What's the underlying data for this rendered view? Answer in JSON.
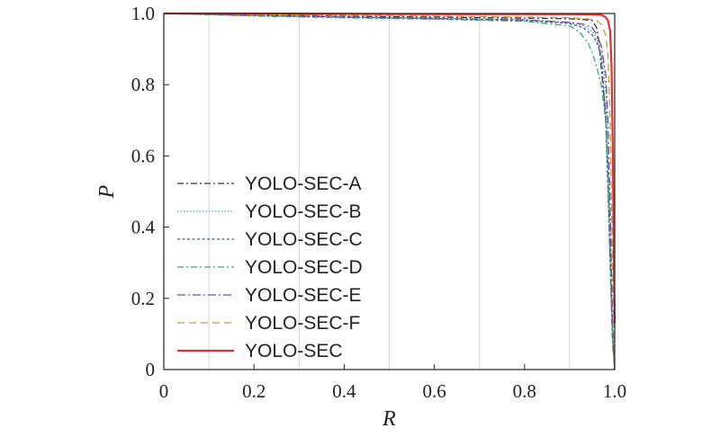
{
  "chart_data": {
    "type": "line",
    "xlabel": "R",
    "ylabel": "P",
    "xlim": [
      0,
      1.0
    ],
    "ylim": [
      0,
      1.0
    ],
    "x_ticks": [
      0,
      0.2,
      0.4,
      0.6,
      0.8,
      1.0
    ],
    "x_tick_labels": [
      "0",
      "0.2",
      "0.4",
      "0.6",
      "0.8",
      "1.0"
    ],
    "y_ticks": [
      0,
      0.2,
      0.4,
      0.6,
      0.8,
      1.0
    ],
    "y_tick_labels": [
      "0",
      "0.2",
      "0.4",
      "0.6",
      "0.8",
      "1.0"
    ],
    "grid": {
      "vertical": [
        0.1,
        0.3,
        0.5,
        0.7,
        0.9
      ],
      "horizontal": false
    },
    "legend_position": "center-left",
    "series": [
      {
        "name": "YOLO-SEC-A",
        "color": "#333333",
        "dash": "dashdot",
        "x": [
          0,
          0.2,
          0.4,
          0.6,
          0.8,
          0.9,
          0.93,
          0.95,
          0.96,
          0.965,
          0.97,
          0.975,
          0.98,
          0.985,
          0.99,
          0.995,
          1.0
        ],
        "y": [
          1.0,
          0.997,
          0.993,
          0.99,
          0.987,
          0.985,
          0.983,
          0.98,
          0.96,
          0.92,
          0.85,
          0.78,
          0.72,
          0.55,
          0.3,
          0.08,
          0.0
        ]
      },
      {
        "name": "YOLO-SEC-B",
        "color": "#4a9fc0",
        "dash": "dotted",
        "x": [
          0,
          0.2,
          0.4,
          0.6,
          0.8,
          0.9,
          0.93,
          0.95,
          0.96,
          0.97,
          0.975,
          0.98,
          0.985,
          0.99,
          0.995,
          1.0
        ],
        "y": [
          1.0,
          0.995,
          0.99,
          0.987,
          0.983,
          0.975,
          0.965,
          0.95,
          0.93,
          0.89,
          0.85,
          0.78,
          0.6,
          0.35,
          0.1,
          0.0
        ]
      },
      {
        "name": "YOLO-SEC-C",
        "color": "#3a5f8a",
        "dash": "dashed-fine",
        "x": [
          0,
          0.2,
          0.4,
          0.6,
          0.8,
          0.9,
          0.93,
          0.95,
          0.96,
          0.97,
          0.975,
          0.98,
          0.985,
          0.99,
          0.995,
          1.0
        ],
        "y": [
          1.0,
          0.994,
          0.99,
          0.985,
          0.98,
          0.972,
          0.96,
          0.94,
          0.92,
          0.88,
          0.8,
          0.7,
          0.5,
          0.3,
          0.1,
          0.0
        ]
      },
      {
        "name": "YOLO-SEC-D",
        "color": "#3aa86a",
        "dash": "dashdot",
        "x": [
          0,
          0.2,
          0.4,
          0.6,
          0.8,
          0.9,
          0.92,
          0.94,
          0.95,
          0.96,
          0.97,
          0.98,
          0.985,
          0.99,
          0.995,
          1.0
        ],
        "y": [
          1.0,
          0.993,
          0.988,
          0.984,
          0.978,
          0.965,
          0.95,
          0.92,
          0.89,
          0.85,
          0.8,
          0.7,
          0.55,
          0.35,
          0.1,
          0.0
        ]
      },
      {
        "name": "YOLO-SEC-E",
        "color": "#6a4aa8",
        "dash": "dashdot-long",
        "x": [
          0,
          0.2,
          0.4,
          0.6,
          0.8,
          0.9,
          0.93,
          0.95,
          0.96,
          0.97,
          0.98,
          0.985,
          0.99,
          0.995,
          1.0
        ],
        "y": [
          1.0,
          0.995,
          0.99,
          0.986,
          0.982,
          0.975,
          0.97,
          0.96,
          0.94,
          0.91,
          0.83,
          0.7,
          0.45,
          0.15,
          0.0
        ]
      },
      {
        "name": "YOLO-SEC-F",
        "color": "#c89a3a",
        "dash": "dashed",
        "x": [
          0,
          0.2,
          0.4,
          0.6,
          0.8,
          0.9,
          0.94,
          0.96,
          0.97,
          0.98,
          0.985,
          0.99,
          0.995,
          1.0
        ],
        "y": [
          1.0,
          0.997,
          0.995,
          0.993,
          0.99,
          0.988,
          0.985,
          0.98,
          0.97,
          0.94,
          0.88,
          0.7,
          0.3,
          0.0
        ]
      },
      {
        "name": "YOLO-SEC",
        "color": "#e53030",
        "dash": "solid",
        "x": [
          0,
          0.2,
          0.4,
          0.6,
          0.8,
          0.9,
          0.95,
          0.97,
          0.98,
          0.985,
          0.99,
          0.993,
          0.996,
          0.998,
          1.0
        ],
        "y": [
          1.0,
          1.0,
          0.999,
          0.998,
          0.998,
          0.998,
          0.997,
          0.996,
          0.99,
          0.98,
          0.95,
          0.85,
          0.6,
          0.3,
          0.13
        ]
      }
    ]
  }
}
